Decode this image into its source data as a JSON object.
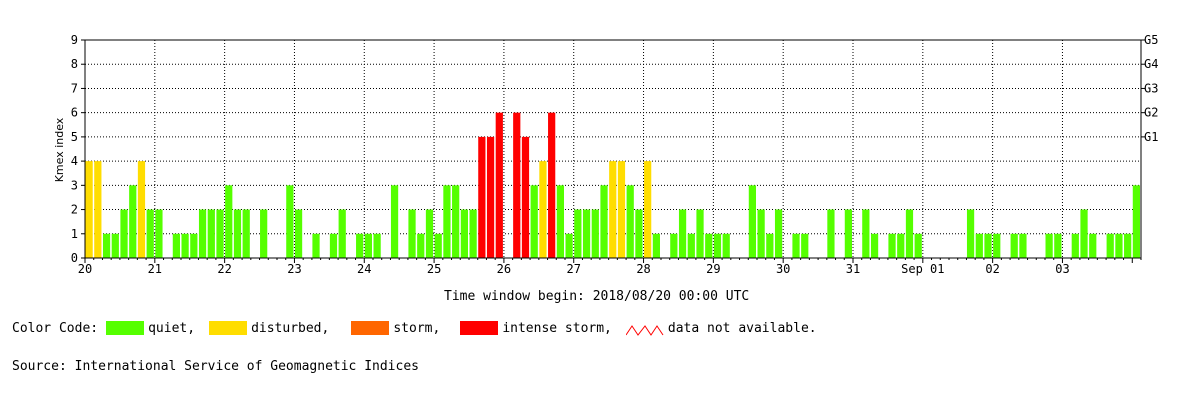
{
  "chart_data": {
    "type": "bar",
    "ylabel": "Kmex index",
    "ylim": [
      0,
      9
    ],
    "yticks": [
      "0",
      "1",
      "2",
      "3",
      "4",
      "5",
      "6",
      "7",
      "8",
      "9"
    ],
    "right_labels": [
      {
        "label": "G1",
        "value": 5
      },
      {
        "label": "G2",
        "value": 6
      },
      {
        "label": "G3",
        "value": 7
      },
      {
        "label": "G4",
        "value": 8
      },
      {
        "label": "G5",
        "value": 9
      }
    ],
    "day_labels": [
      "20",
      "21",
      "22",
      "23",
      "24",
      "25",
      "26",
      "27",
      "28",
      "29",
      "30",
      "31",
      "Sep 01",
      "02",
      "03"
    ],
    "interval_hours": 3,
    "values": [
      4,
      4,
      1,
      1,
      2,
      3,
      4,
      2,
      2,
      0,
      1,
      1,
      1,
      2,
      2,
      2,
      3,
      2,
      2,
      0,
      2,
      0,
      0,
      3,
      2,
      0,
      1,
      0,
      1,
      2,
      0,
      1,
      1,
      1,
      0,
      3,
      0,
      2,
      1,
      2,
      1,
      3,
      3,
      2,
      2,
      5,
      5,
      6,
      0,
      6,
      5,
      3,
      4,
      6,
      3,
      1,
      2,
      2,
      2,
      3,
      4,
      4,
      3,
      2,
      4,
      1,
      0,
      1,
      2,
      1,
      2,
      1,
      1,
      1,
      0,
      0,
      3,
      2,
      1,
      2,
      0,
      1,
      1,
      0,
      0,
      2,
      0,
      2,
      0,
      2,
      1,
      0,
      1,
      1,
      2,
      1,
      0,
      0,
      0,
      0,
      0,
      2,
      1,
      1,
      1,
      0,
      1,
      1,
      0,
      0,
      1,
      1,
      0,
      1,
      2,
      1,
      0,
      1,
      1,
      1,
      3
    ],
    "grid": true,
    "colors": {
      "quiet": "#55ff00",
      "disturbed": "#ffdd00",
      "storm": "#ff6600",
      "intense": "#ff0000"
    }
  },
  "xlabel": "Time window begin: 2018/08/20 00:00 UTC",
  "legend": {
    "title": "Color Code:",
    "items": [
      {
        "label": "quiet,",
        "color": "#55ff00"
      },
      {
        "label": "disturbed,",
        "color": "#ffdd00"
      },
      {
        "label": "storm,",
        "color": "#ff6600"
      },
      {
        "label": "intense storm,",
        "color": "#ff0000"
      },
      {
        "label": "data not available.",
        "icon": "red-zigzag-icon"
      }
    ]
  },
  "source": "Source: International Service of Geomagnetic Indices"
}
